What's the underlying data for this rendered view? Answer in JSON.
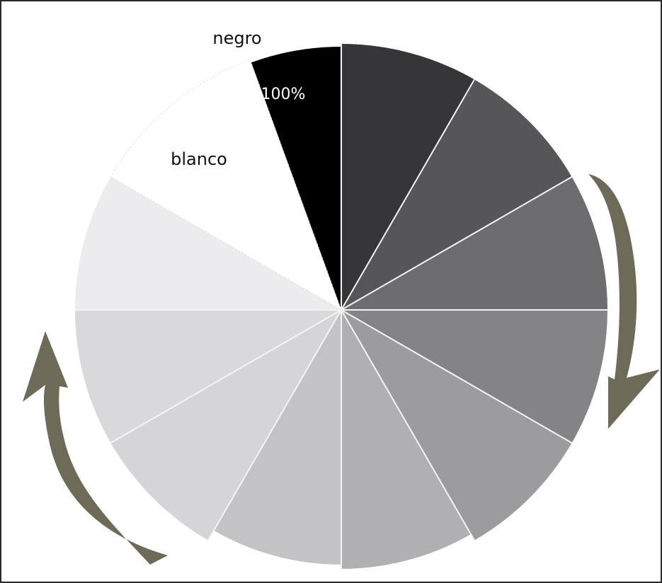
{
  "labels": {
    "black": "negro",
    "percent": "100%",
    "white": "blanco"
  },
  "colors": {
    "border": "#2b2b2b",
    "divider": "#f4f4f4",
    "arrow": "#6e6a58",
    "label_dark": "#111111",
    "label_light": "#ffffff",
    "white_edge": "#d9d9d9"
  },
  "wheel": {
    "segments": [
      {
        "name": "black",
        "fill": "#000000"
      },
      {
        "name": "gray-1",
        "fill": "#363537"
      },
      {
        "name": "gray-2",
        "fill": "#565658"
      },
      {
        "name": "gray-3",
        "fill": "#6d6d6f"
      },
      {
        "name": "gray-4",
        "fill": "#848486"
      },
      {
        "name": "gray-5",
        "fill": "#9c9c9e"
      },
      {
        "name": "gray-6",
        "fill": "#b0b0b2"
      },
      {
        "name": "gray-7",
        "fill": "#c3c3c5"
      },
      {
        "name": "gray-8",
        "fill": "#d5d5d7"
      },
      {
        "name": "gray-9",
        "fill": "#d9d9db"
      },
      {
        "name": "gray-10",
        "fill": "#ececee"
      },
      {
        "name": "white",
        "fill": "#ffffff"
      }
    ]
  },
  "arrows": [
    {
      "name": "clockwise-arrow",
      "direction": "clockwise"
    },
    {
      "name": "counterclockwise-arrow",
      "direction": "counterclockwise"
    }
  ]
}
